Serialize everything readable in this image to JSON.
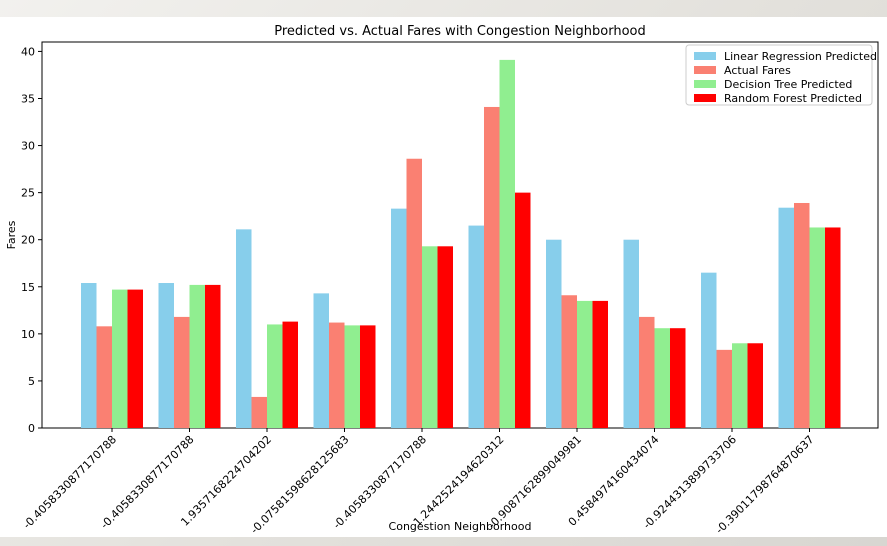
{
  "chart_data": {
    "type": "bar",
    "title": "Predicted vs. Actual Fares with Congestion Neighborhood",
    "xlabel": "Congestion Neighborhood",
    "ylabel": "Fares",
    "ylim": [
      0,
      41
    ],
    "yticks": [
      0,
      5,
      10,
      15,
      20,
      25,
      30,
      35,
      40
    ],
    "grid": false,
    "legend_position": "top-right",
    "categories": [
      "-0.405833087717078​8",
      "-0.4058330877170788",
      "1.935716822470420​2",
      "-0.0758159862812568​3",
      "-0.4058330877170788",
      "1.244252419462031​2",
      "-0.908716289904998​1",
      "0.458497416043407​4",
      "-0.924431389973370​6",
      "-0.390117987648706​37"
    ],
    "series": [
      {
        "name": "Linear Regression Predicted",
        "color": "#87ceeb",
        "values": [
          15.4,
          15.4,
          21.1,
          14.3,
          23.3,
          21.5,
          20.0,
          20.0,
          16.5,
          23.4
        ]
      },
      {
        "name": "Actual Fares",
        "color": "#fa8072",
        "values": [
          10.8,
          11.8,
          3.3,
          11.2,
          28.6,
          34.1,
          14.1,
          11.8,
          8.3,
          23.9
        ]
      },
      {
        "name": "Decision Tree Predicted",
        "color": "#90ee90",
        "values": [
          14.7,
          15.2,
          11.0,
          10.9,
          19.3,
          39.1,
          13.5,
          10.6,
          9.0,
          21.3
        ]
      },
      {
        "name": "Random Forest Predicted",
        "color": "#ff0000",
        "values": [
          14.7,
          15.2,
          11.3,
          10.9,
          19.3,
          25.0,
          13.5,
          10.6,
          9.0,
          21.3
        ]
      }
    ]
  }
}
